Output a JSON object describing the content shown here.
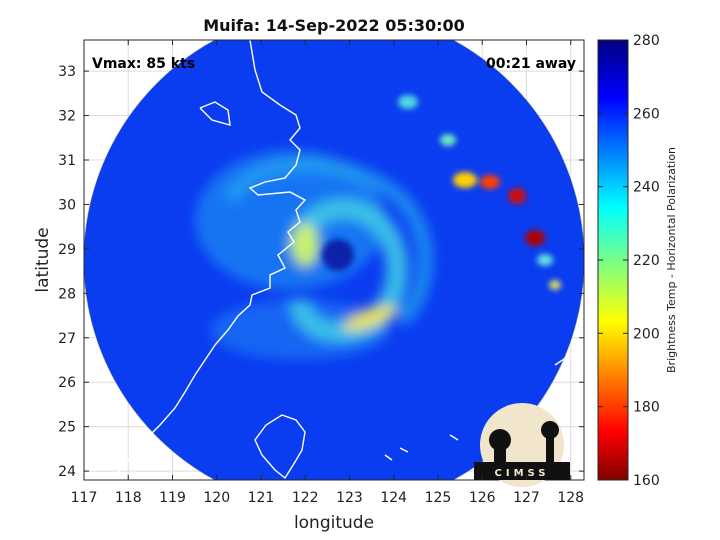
{
  "chart_data": {
    "type": "heatmap",
    "title": "Muifa: 14-Sep-2022 05:30:00",
    "xlabel": "longitude",
    "ylabel": "latitude",
    "xlim": [
      117,
      128.3
    ],
    "ylim": [
      23.8,
      33.7
    ],
    "xticks": [
      117,
      118,
      119,
      120,
      121,
      122,
      123,
      124,
      125,
      126,
      127,
      128
    ],
    "yticks": [
      24,
      25,
      26,
      27,
      28,
      29,
      30,
      31,
      32,
      33
    ],
    "grid": true,
    "colorbar": {
      "label": "Brightness Temp - Horizontal Polarization",
      "min": 160,
      "max": 280,
      "ticks": [
        160,
        180,
        200,
        220,
        240,
        260,
        280
      ],
      "colormap": "jet"
    },
    "annotations": {
      "vmax": "Vmax: 85 kts",
      "time_away": "00:21 away"
    },
    "storm_center": {
      "lon": 122.85,
      "lat": 28.95
    },
    "logo_text": "CIMSS"
  }
}
